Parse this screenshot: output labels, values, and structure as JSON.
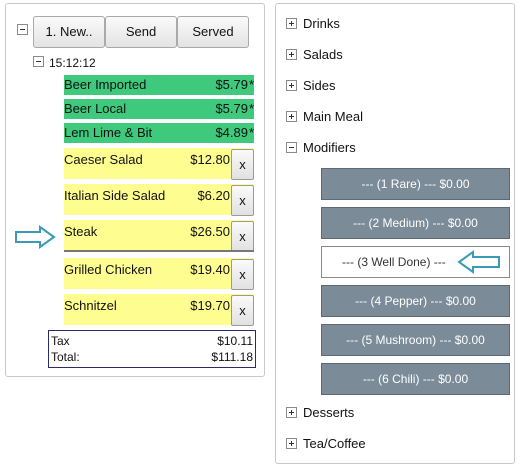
{
  "order": {
    "buttons": {
      "new_label": "1. New..",
      "send_label": "Send",
      "served_label": "Served"
    },
    "time": "15:12:12",
    "items": [
      {
        "name": "Beer Imported",
        "price": "$5.79",
        "mark": "*"
      },
      {
        "name": "Beer Local",
        "price": "$5.79",
        "mark": "*"
      },
      {
        "name": "Lem Lime & Bit",
        "price": "$4.89",
        "mark": "*"
      },
      {
        "name": "Caeser Salad",
        "price": "$12.80",
        "remove": "x"
      },
      {
        "name": "Italian Side Salad",
        "price": "$6.20",
        "remove": "x"
      },
      {
        "name": "Steak",
        "price": "$26.50",
        "remove": "x"
      },
      {
        "name": "Grilled Chicken",
        "price": "$19.40",
        "remove": "x"
      },
      {
        "name": "Schnitzel",
        "price": "$19.70",
        "remove": "x"
      }
    ],
    "totals": {
      "tax_label": "Tax",
      "tax_value": "$10.11",
      "total_label": "Total:",
      "total_value": "$111.18"
    }
  },
  "menu": {
    "categories": [
      "Drinks",
      "Salads",
      "Sides",
      "Main Meal",
      "Modifiers",
      "Desserts",
      "Tea/Coffee"
    ],
    "modifiers": [
      "--- (1 Rare) --- $0.00",
      "--- (2 Medium) --- $0.00",
      "--- (3 Well Done) ---",
      "--- (4 Pepper) --- $0.00",
      "--- (5 Mushroom) --- $0.00",
      "--- (6 Chili) --- $0.00"
    ]
  },
  "colors": {
    "sent_item": "#3ec97c",
    "pending_item": "#fefe90",
    "modifier_button": "#7b8b98",
    "arrow": "#3a9ab8"
  }
}
